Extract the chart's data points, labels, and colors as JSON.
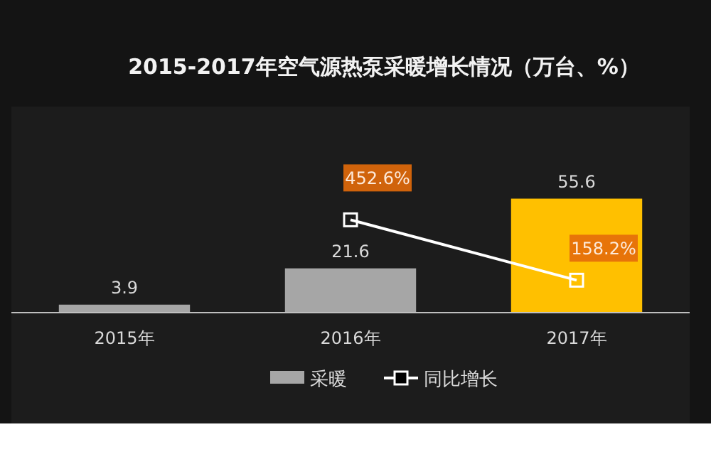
{
  "chart_data": {
    "type": "bar",
    "title": "2015-2017年空气源热泵采暖增长情况（万台、%）",
    "categories": [
      "2015年",
      "2016年",
      "2017年"
    ],
    "series": [
      {
        "name": "采暖",
        "color": "#a6a6a6",
        "colors": [
          "#a6a6a6",
          "#a6a6a6",
          "#ffc000"
        ],
        "values": [
          3.9,
          21.6,
          55.6
        ]
      },
      {
        "type": "line",
        "name": "同比增长",
        "axis": "y2",
        "color": "#ffffff",
        "marker": "square",
        "values": [
          null,
          452.6,
          158.2
        ],
        "value_labels": [
          null,
          "452.6%",
          "158.2%"
        ]
      }
    ],
    "ylim": [
      0,
      70
    ],
    "y2lim": [
      0,
      700
    ],
    "tick_labels": "x",
    "data_labels": true,
    "legend": "bottom",
    "grid": false
  }
}
